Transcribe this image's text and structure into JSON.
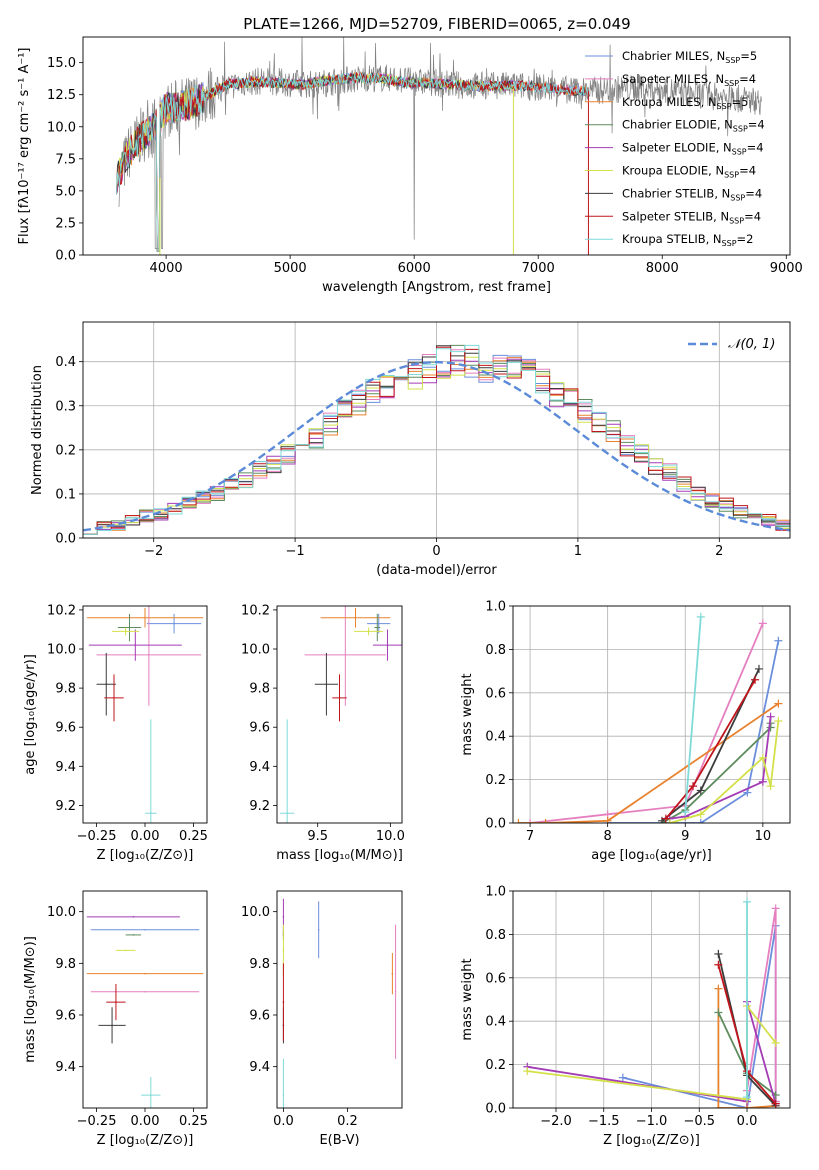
{
  "figure": {
    "title": "PLATE=1266, MJD=52709, FIBERID=0065, z=0.049"
  },
  "colors": {
    "Chabrier MILES": "#6b8fdc",
    "Salpeter MILES": "#e57fbf",
    "Kroupa MILES": "#e8822e",
    "Chabrier ELODIE": "#5e8c5e",
    "Salpeter ELODIE": "#a33cb5",
    "Kroupa ELODIE": "#d4e04a",
    "Chabrier STELIB": "#3b3b3b",
    "Salpeter STELIB": "#c0141c",
    "Kroupa STELIB": "#7fdad8",
    "data": "#808080",
    "gaussian": "#5b8bd8"
  },
  "chart_data": [
    {
      "id": "spectrum",
      "type": "line",
      "title": "PLATE=1266, MJD=52709, FIBERID=0065, z=0.049",
      "xlabel": "wavelength [Angstrom, rest frame]",
      "ylabel": "Flux [fλ10⁻¹⁷ erg cm⁻² s⁻¹ A⁻¹]",
      "xlim": [
        3330,
        9030
      ],
      "ylim": [
        0,
        17
      ],
      "xticks": [
        4000,
        5000,
        6000,
        7000,
        8000,
        9000
      ],
      "yticks": [
        0.0,
        2.5,
        5.0,
        7.5,
        10.0,
        12.5,
        15.0
      ],
      "legend_position": "top-right",
      "grid": false,
      "continuum": {
        "x": [
          3600,
          3700,
          3800,
          3900,
          4000,
          4100,
          4200,
          4300,
          4400,
          4500,
          4700,
          4900,
          5100,
          5300,
          5500,
          5700,
          5900,
          6100,
          6300,
          6500,
          6700,
          6900,
          7100,
          7300,
          7400
        ],
        "y": [
          6.0,
          8.0,
          9.2,
          10.0,
          11.5,
          11.5,
          11.8,
          12.3,
          12.8,
          13.3,
          13.5,
          13.4,
          13.3,
          13.6,
          13.8,
          13.8,
          13.5,
          13.4,
          13.3,
          13.2,
          13.2,
          13.2,
          13.0,
          12.8,
          12.8
        ]
      },
      "data_continuum": {
        "x": [
          3620,
          3700,
          3800,
          3900,
          4000,
          4200,
          4400,
          4600,
          4800,
          5000,
          5200,
          5400,
          5600,
          5800,
          6000,
          6200,
          6400,
          6600,
          6800,
          7000,
          7200,
          7400,
          7600,
          7800,
          8000,
          8200,
          8400,
          8600,
          8800
        ],
        "y": [
          6.0,
          8.0,
          9.3,
          10.0,
          11.3,
          11.8,
          12.8,
          13.4,
          13.6,
          13.4,
          13.3,
          13.6,
          13.8,
          13.8,
          13.5,
          13.4,
          13.2,
          13.2,
          13.2,
          13.1,
          12.9,
          12.8,
          12.9,
          13.0,
          12.9,
          12.6,
          12.4,
          12.2,
          12.0
        ]
      },
      "series": [
        {
          "name": "Chabrier MILES, N_SSP=5",
          "legend": "Chabrier MILES, N",
          "n": "=5"
        },
        {
          "name": "Salpeter MILES, N_SSP=4",
          "legend": "Salpeter MILES, N",
          "n": "=4"
        },
        {
          "name": "Kroupa MILES, N_SSP=5",
          "legend": "Kroupa MILES, N",
          "n": "=5"
        },
        {
          "name": "Chabrier ELODIE, N_SSP=4",
          "legend": "Chabrier ELODIE, N",
          "n": "=4"
        },
        {
          "name": "Salpeter ELODIE, N_SSP=4",
          "legend": "Salpeter ELODIE, N",
          "n": "=4"
        },
        {
          "name": "Kroupa ELODIE, N_SSP=4",
          "legend": "Kroupa ELODIE, N",
          "n": "=4"
        },
        {
          "name": "Chabrier STELIB, N_SSP=4",
          "legend": "Chabrier STELIB, N",
          "n": "=4"
        },
        {
          "name": "Salpeter STELIB, N_SSP=4",
          "legend": "Salpeter STELIB, N",
          "n": "=4"
        },
        {
          "name": "Kroupa STELIB, N_SSP=2",
          "legend": "Kroupa STELIB, N",
          "n": "=2"
        }
      ],
      "legend_subscript": "SSP"
    },
    {
      "id": "residuals",
      "type": "histogram",
      "xlabel": "(data-model)/error",
      "ylabel": "Normed distribution",
      "xlim": [
        -2.5,
        2.5
      ],
      "ylim": [
        0,
        0.49
      ],
      "xticks": [
        -2,
        -1,
        0,
        1,
        2
      ],
      "yticks": [
        0.0,
        0.1,
        0.2,
        0.3,
        0.4
      ],
      "grid": true,
      "legend_position": "top-right",
      "legend": "𝒩(0, 1)",
      "bin_width": 0.1,
      "bin_start": -2.5,
      "base_heights": [
        0.02,
        0.025,
        0.03,
        0.04,
        0.05,
        0.055,
        0.065,
        0.08,
        0.09,
        0.1,
        0.12,
        0.13,
        0.155,
        0.17,
        0.19,
        0.21,
        0.23,
        0.26,
        0.29,
        0.31,
        0.33,
        0.35,
        0.36,
        0.37,
        0.39,
        0.4,
        0.4,
        0.4,
        0.39,
        0.39,
        0.38,
        0.37,
        0.35,
        0.33,
        0.31,
        0.29,
        0.26,
        0.24,
        0.21,
        0.19,
        0.16,
        0.15,
        0.12,
        0.1,
        0.085,
        0.075,
        0.06,
        0.05,
        0.04,
        0.03
      ]
    },
    {
      "id": "age_vs_Z",
      "type": "errorbar",
      "xlabel": "Z [log₁₀(Z/Z⊙)]",
      "ylabel": "age  [log₁₀(age/yr)]",
      "xlim": [
        -0.32,
        0.32
      ],
      "ylim": [
        9.11,
        10.22
      ],
      "xticks": [
        -0.25,
        0.0,
        0.25
      ],
      "xticklabels": [
        "−0.25",
        "0.00",
        "0.25"
      ],
      "yticks": [
        9.2,
        9.4,
        9.6,
        9.8,
        10.0,
        10.2
      ],
      "points": [
        {
          "model": "Chabrier MILES",
          "x": 0.15,
          "xerr": 0.14,
          "y": 10.13,
          "yerr": 0.05
        },
        {
          "model": "Salpeter MILES",
          "x": 0.02,
          "xerr": 0.27,
          "y": 9.97,
          "yerr": 0.26
        },
        {
          "model": "Kroupa MILES",
          "x": 0.0,
          "xerr": 0.3,
          "y": 10.16,
          "yerr": 0.05
        },
        {
          "model": "Chabrier ELODIE",
          "x": -0.08,
          "xerr": 0.06,
          "y": 10.11,
          "yerr": 0.07
        },
        {
          "model": "Salpeter ELODIE",
          "x": -0.05,
          "xerr": 0.24,
          "y": 10.02,
          "yerr": 0.08
        },
        {
          "model": "Kroupa ELODIE",
          "x": -0.1,
          "xerr": 0.07,
          "y": 10.09,
          "yerr": 0.02
        },
        {
          "model": "Chabrier STELIB",
          "x": -0.2,
          "xerr": 0.05,
          "y": 9.82,
          "yerr": 0.16
        },
        {
          "model": "Salpeter STELIB",
          "x": -0.16,
          "xerr": 0.05,
          "y": 9.75,
          "yerr": 0.12
        },
        {
          "model": "Kroupa STELIB",
          "x": 0.03,
          "xerr": 0.03,
          "y": 9.16,
          "yerr": 0.48
        }
      ]
    },
    {
      "id": "age_vs_mass",
      "type": "errorbar",
      "xlabel": "mass [log₁₀(M/M⊙)]",
      "xlim": [
        9.22,
        10.08
      ],
      "ylim": [
        9.11,
        10.22
      ],
      "xticks": [
        9.5,
        10.0
      ],
      "yticks": [
        9.2,
        9.4,
        9.6,
        9.8,
        10.0,
        10.2
      ],
      "points": [
        {
          "model": "Chabrier MILES",
          "x": 9.92,
          "xerr": 0.08,
          "y": 10.13,
          "yerr": 0.05
        },
        {
          "model": "Salpeter MILES",
          "x": 9.69,
          "xerr": 0.28,
          "y": 9.97,
          "yerr": 0.26
        },
        {
          "model": "Kroupa MILES",
          "x": 9.76,
          "xerr": 0.24,
          "y": 10.16,
          "yerr": 0.05
        },
        {
          "model": "Chabrier ELODIE",
          "x": 9.91,
          "xerr": 0.02,
          "y": 10.11,
          "yerr": 0.07
        },
        {
          "model": "Salpeter ELODIE",
          "x": 9.98,
          "xerr": 0.1,
          "y": 10.02,
          "yerr": 0.08
        },
        {
          "model": "Kroupa ELODIE",
          "x": 9.85,
          "xerr": 0.1,
          "y": 10.09,
          "yerr": 0.02
        },
        {
          "model": "Chabrier STELIB",
          "x": 9.56,
          "xerr": 0.08,
          "y": 9.82,
          "yerr": 0.16
        },
        {
          "model": "Salpeter STELIB",
          "x": 9.65,
          "xerr": 0.05,
          "y": 9.75,
          "yerr": 0.12
        },
        {
          "model": "Kroupa STELIB",
          "x": 9.29,
          "xerr": 0.05,
          "y": 9.16,
          "yerr": 0.48
        }
      ]
    },
    {
      "id": "weight_vs_age",
      "type": "line",
      "xlabel": "age  [log₁₀(age/yr)]",
      "ylabel": "mass weight",
      "xlim": [
        6.78,
        10.35
      ],
      "ylim": [
        0.0,
        1.0
      ],
      "xticks": [
        7,
        8,
        9,
        10
      ],
      "yticks": [
        0.0,
        0.2,
        0.4,
        0.6,
        0.8,
        1.0
      ],
      "grid": true,
      "series": [
        {
          "model": "Chabrier MILES",
          "x": [
            8.0,
            9.2,
            9.8,
            10.2
          ],
          "y": [
            0.0,
            0.0,
            0.14,
            0.84
          ]
        },
        {
          "model": "Salpeter MILES",
          "x": [
            7.0,
            8.0,
            9.0,
            10.0
          ],
          "y": [
            0.0,
            0.04,
            0.08,
            0.92
          ]
        },
        {
          "model": "Kroupa MILES",
          "x": [
            6.85,
            7.2,
            8.0,
            10.2
          ],
          "y": [
            0.0,
            0.0,
            0.01,
            0.55
          ]
        },
        {
          "model": "Chabrier ELODIE",
          "x": [
            8.7,
            9.0,
            10.1,
            10.1
          ],
          "y": [
            0.0,
            0.06,
            0.44,
            0.46
          ]
        },
        {
          "model": "Salpeter ELODIE",
          "x": [
            8.8,
            9.0,
            10.0,
            10.1
          ],
          "y": [
            0.02,
            0.03,
            0.19,
            0.49
          ]
        },
        {
          "model": "Kroupa ELODIE",
          "x": [
            8.8,
            9.2,
            10.0,
            10.1,
            10.2
          ],
          "y": [
            0.0,
            0.04,
            0.3,
            0.17,
            0.47
          ]
        },
        {
          "model": "Chabrier STELIB",
          "x": [
            8.7,
            9.2,
            9.95
          ],
          "y": [
            0.01,
            0.15,
            0.71
          ]
        },
        {
          "model": "Salpeter STELIB",
          "x": [
            8.75,
            9.1,
            9.9
          ],
          "y": [
            0.02,
            0.17,
            0.66
          ]
        },
        {
          "model": "Kroupa STELIB",
          "x": [
            9.0,
            9.2
          ],
          "y": [
            0.05,
            0.95
          ]
        }
      ]
    },
    {
      "id": "mass_vs_Z",
      "type": "errorbar",
      "xlabel": "Z [log₁₀(Z/Z⊙)]",
      "ylabel": "mass [log₁₀(M/M⊙)]",
      "xlim": [
        -0.32,
        0.32
      ],
      "ylim": [
        9.24,
        10.08
      ],
      "xticks": [
        -0.25,
        0.0,
        0.25
      ],
      "xticklabels": [
        "−0.25",
        "0.00",
        "0.25"
      ],
      "yticks": [
        9.4,
        9.6,
        9.8,
        10.0
      ],
      "points": [
        {
          "model": "Chabrier MILES",
          "x": 0.0,
          "xerr": 0.28,
          "y": 9.93,
          "yerr": 0.0
        },
        {
          "model": "Salpeter MILES",
          "x": 0.0,
          "xerr": 0.28,
          "y": 9.69,
          "yerr": 0.0
        },
        {
          "model": "Kroupa MILES",
          "x": 0.0,
          "xerr": 0.3,
          "y": 9.76,
          "yerr": 0.0
        },
        {
          "model": "Chabrier ELODIE",
          "x": -0.06,
          "xerr": 0.04,
          "y": 9.91,
          "yerr": 0.0
        },
        {
          "model": "Salpeter ELODIE",
          "x": -0.06,
          "xerr": 0.24,
          "y": 9.98,
          "yerr": 0.0
        },
        {
          "model": "Kroupa ELODIE",
          "x": -0.1,
          "xerr": 0.05,
          "y": 9.85,
          "yerr": 0.0
        },
        {
          "model": "Chabrier STELIB",
          "x": -0.17,
          "xerr": 0.07,
          "y": 9.56,
          "yerr": 0.07
        },
        {
          "model": "Salpeter STELIB",
          "x": -0.15,
          "xerr": 0.05,
          "y": 9.65,
          "yerr": 0.07
        },
        {
          "model": "Kroupa STELIB",
          "x": 0.03,
          "xerr": 0.05,
          "y": 9.29,
          "yerr": 0.07
        }
      ]
    },
    {
      "id": "mass_vs_EBV",
      "type": "errorbar",
      "xlabel": "E(B-V)",
      "xlim": [
        -0.02,
        0.37
      ],
      "ylim": [
        9.24,
        10.08
      ],
      "xticks": [
        0.0,
        0.2
      ],
      "yticks": [
        9.4,
        9.6,
        9.8,
        10.0
      ],
      "points": [
        {
          "model": "Chabrier MILES",
          "x": 0.11,
          "y": 9.93,
          "yerr": 0.11
        },
        {
          "model": "Salpeter MILES",
          "x": 0.35,
          "y": 9.69,
          "yerr": 0.26
        },
        {
          "model": "Kroupa MILES",
          "x": 0.34,
          "y": 9.76,
          "yerr": 0.08
        },
        {
          "model": "Chabrier ELODIE",
          "x": 0.0,
          "y": 9.91,
          "yerr": 0.02
        },
        {
          "model": "Salpeter ELODIE",
          "x": 0.0,
          "y": 9.98,
          "yerr": 0.07
        },
        {
          "model": "Kroupa ELODIE",
          "x": 0.0,
          "y": 9.85,
          "yerr": 0.1
        },
        {
          "model": "Chabrier STELIB",
          "x": 0.0,
          "y": 9.56,
          "yerr": 0.07
        },
        {
          "model": "Salpeter STELIB",
          "x": 0.0,
          "y": 9.65,
          "yerr": 0.15
        },
        {
          "model": "Kroupa STELIB",
          "x": 0.0,
          "y": 9.29,
          "yerr": 0.14
        }
      ]
    },
    {
      "id": "weight_vs_Z",
      "type": "line",
      "xlabel": "Z [log₁₀(Z/Z⊙)]",
      "ylabel": "mass weight",
      "xlim": [
        -2.45,
        0.45
      ],
      "ylim": [
        0.0,
        1.0
      ],
      "xticks": [
        -2.0,
        -1.5,
        -1.0,
        -0.5,
        0.0
      ],
      "xticklabels": [
        "−2.0",
        "−1.5",
        "−1.0",
        "−0.5",
        "0.0"
      ],
      "yticks": [
        0.0,
        0.2,
        0.4,
        0.6,
        0.8,
        1.0
      ],
      "grid": true,
      "series": [
        {
          "model": "Chabrier MILES",
          "x": [
            -1.3,
            0.0,
            0.3,
            0.3
          ],
          "y": [
            0.14,
            0.0,
            0.84,
            0.03
          ]
        },
        {
          "model": "Salpeter MILES",
          "x": [
            0.0,
            0.0,
            0.3,
            0.3
          ],
          "y": [
            0.0,
            0.08,
            0.92,
            0.03
          ]
        },
        {
          "model": "Kroupa MILES",
          "x": [
            -0.3,
            -0.3,
            0.0,
            0.3
          ],
          "y": [
            0.55,
            0.0,
            0.0,
            0.01
          ]
        },
        {
          "model": "Chabrier ELODIE",
          "x": [
            -0.3,
            0.0,
            0.3
          ],
          "y": [
            0.44,
            0.16,
            0.06
          ]
        },
        {
          "model": "Salpeter ELODIE",
          "x": [
            -2.3,
            0.0,
            0.0,
            0.3
          ],
          "y": [
            0.19,
            0.03,
            0.49,
            0.02
          ]
        },
        {
          "model": "Kroupa ELODIE",
          "x": [
            -2.3,
            0.0,
            0.0,
            0.3
          ],
          "y": [
            0.17,
            0.04,
            0.47,
            0.3
          ]
        },
        {
          "model": "Chabrier STELIB",
          "x": [
            -0.3,
            0.0,
            0.3
          ],
          "y": [
            0.71,
            0.15,
            0.01
          ]
        },
        {
          "model": "Salpeter STELIB",
          "x": [
            -0.3,
            0.0,
            0.3
          ],
          "y": [
            0.66,
            0.17,
            0.02
          ]
        },
        {
          "model": "Kroupa STELIB",
          "x": [
            0.0,
            0.0
          ],
          "y": [
            0.95,
            0.05
          ]
        }
      ]
    }
  ]
}
